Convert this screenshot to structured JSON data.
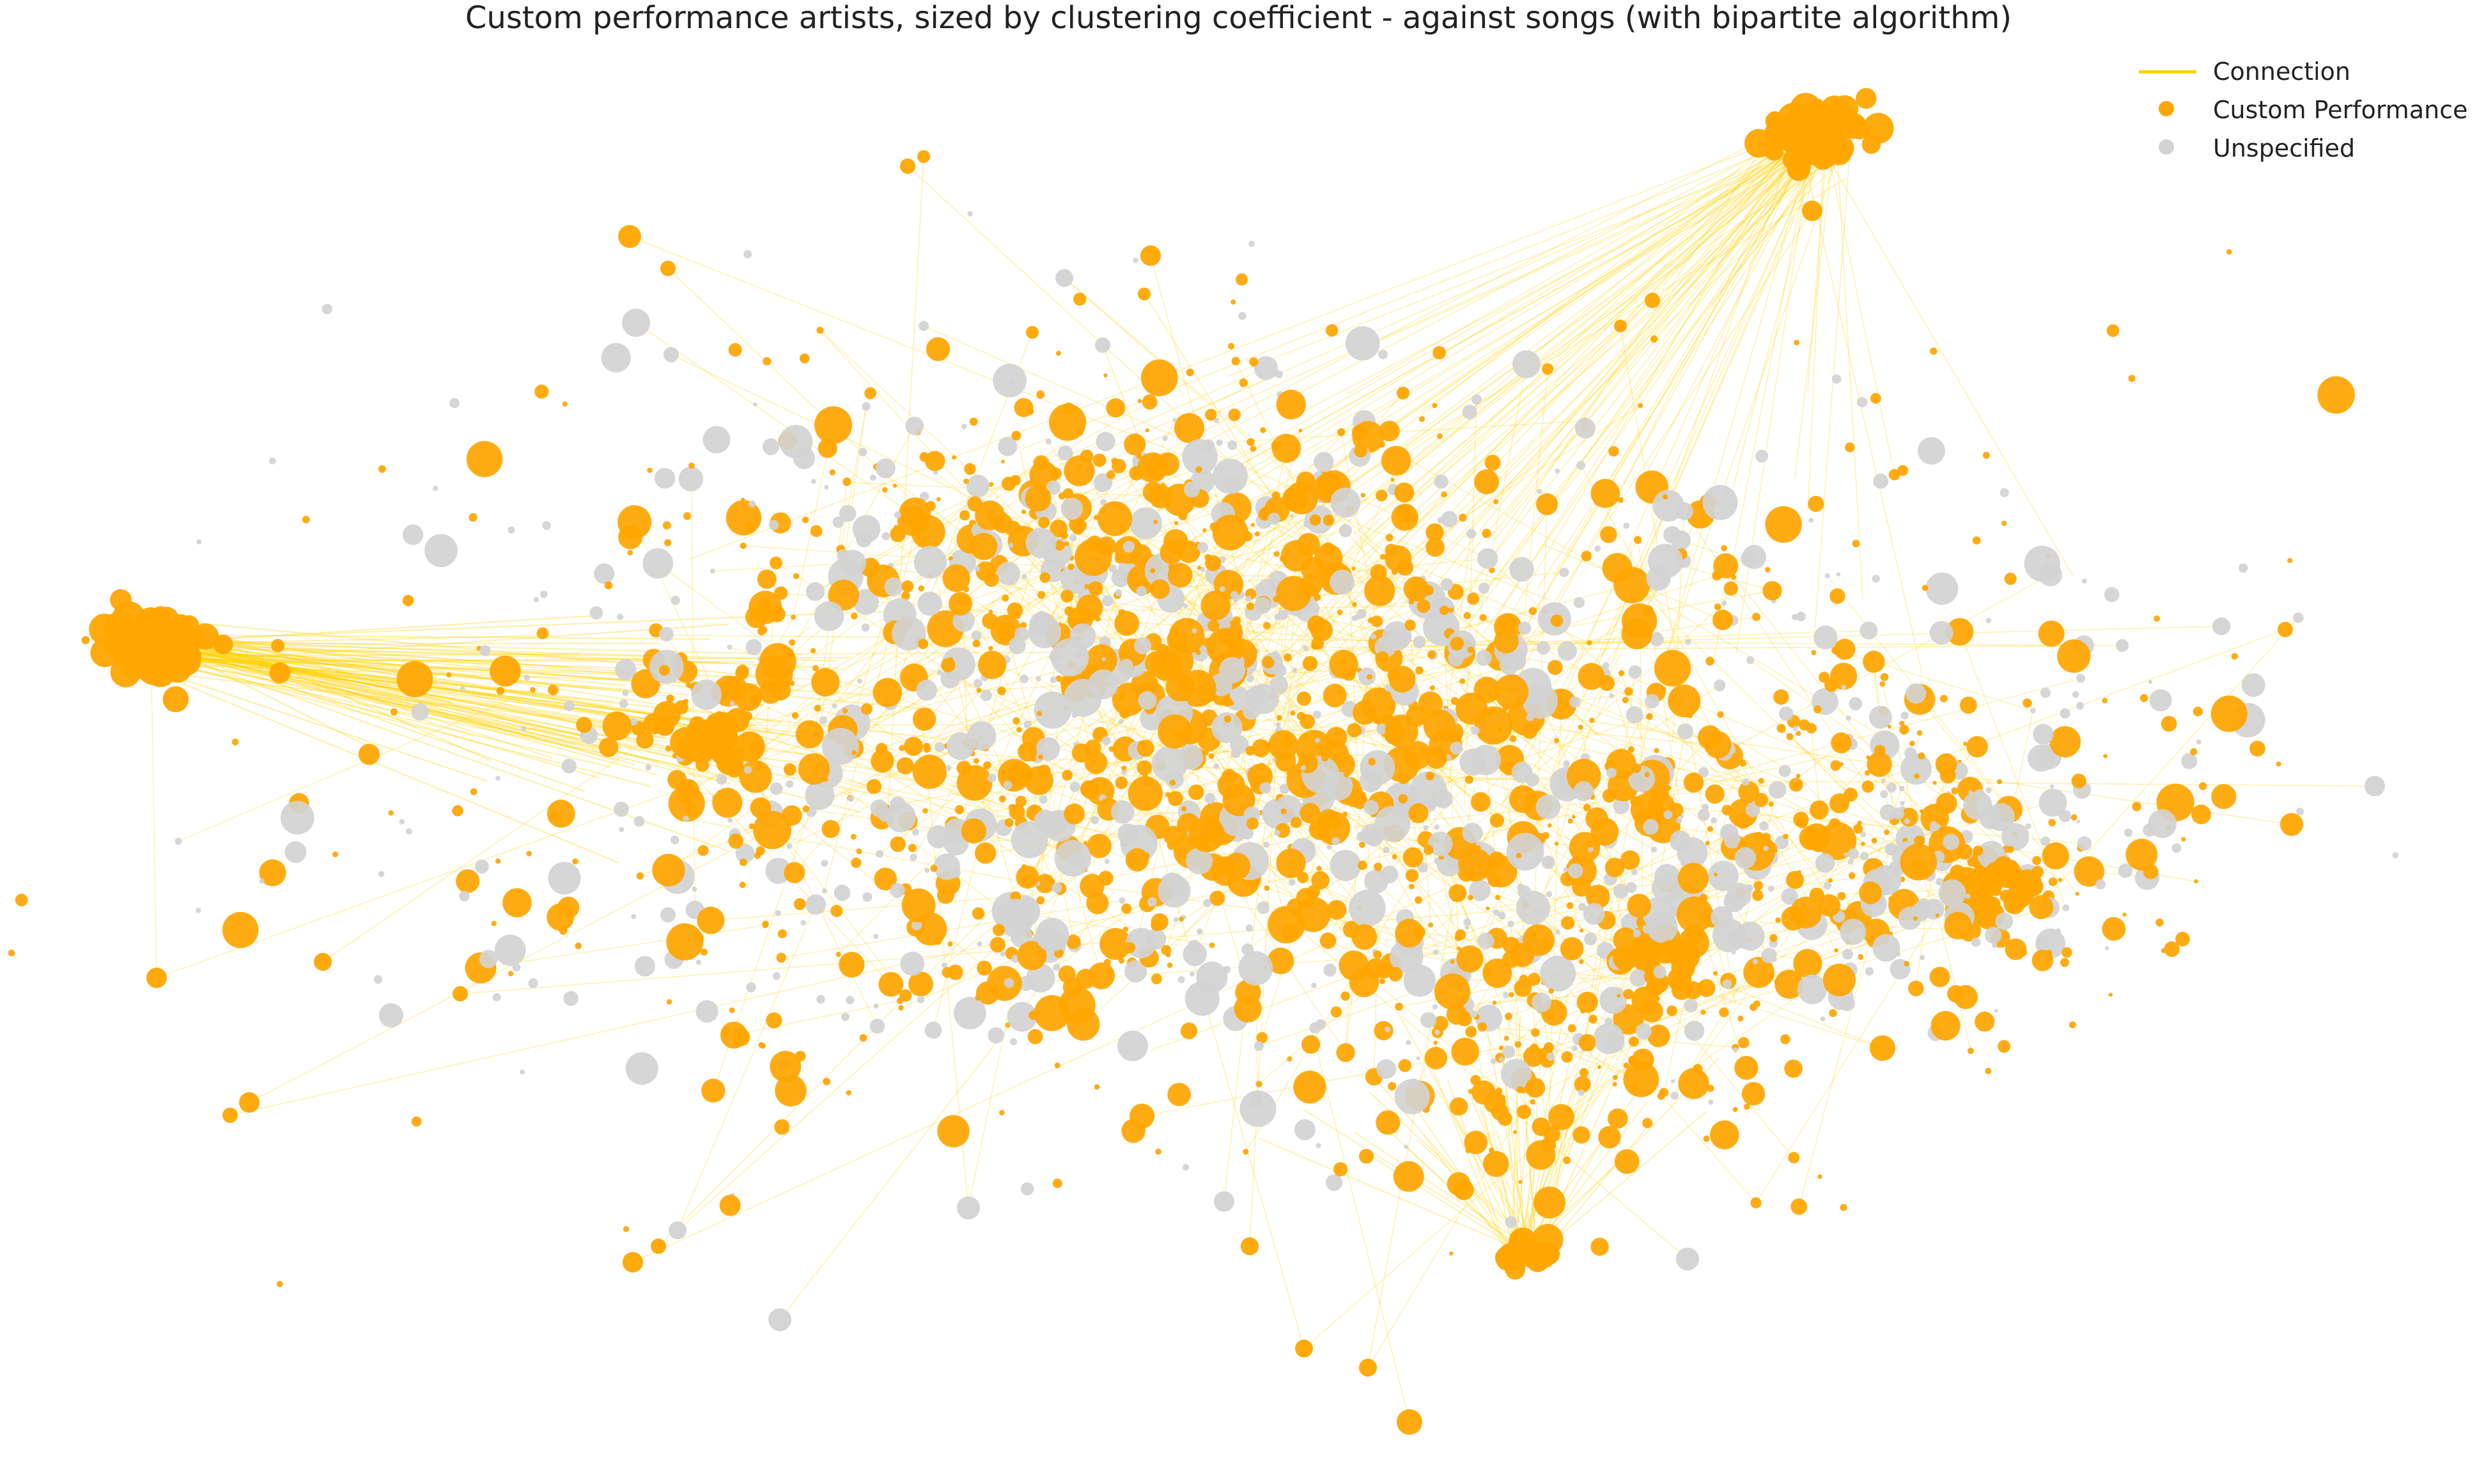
{
  "title": "Custom performance artists, sized by clustering coefficient - against songs (with bipartite algorithm)",
  "legend": {
    "items": [
      {
        "label": "Connection",
        "kind": "line",
        "color": "#ffd200"
      },
      {
        "label": "Custom Performance",
        "kind": "dot",
        "color": "#ffa500"
      },
      {
        "label": "Unspecified",
        "kind": "dot",
        "color": "#d3d3d3"
      }
    ]
  },
  "colors": {
    "custom_performance": "#ffa500",
    "unspecified": "#d3d3d3",
    "connection": "#ffd200"
  }
}
